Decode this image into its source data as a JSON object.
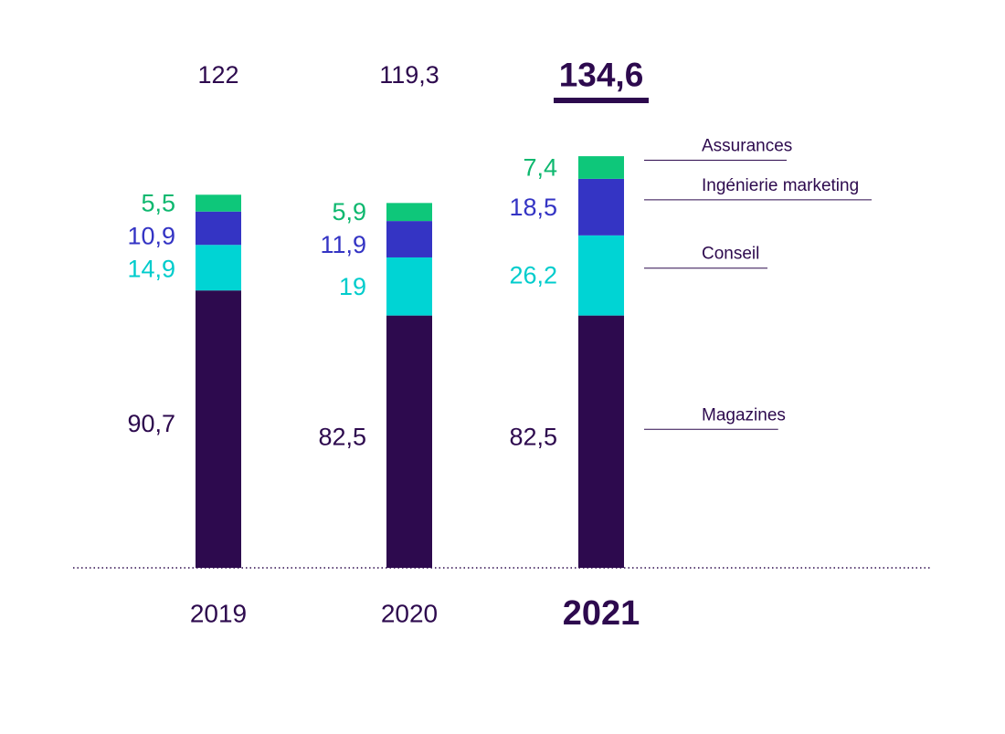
{
  "chart_data": {
    "type": "bar",
    "stacked": true,
    "categories": [
      "2019",
      "2020",
      "2021"
    ],
    "highlight_category": "2021",
    "totals": [
      "122",
      "119,3",
      "134,6"
    ],
    "series": [
      {
        "name": "Magazines",
        "values": [
          90.7,
          82.5,
          82.5
        ],
        "labels": [
          "90,7",
          "82,5",
          "82,5"
        ],
        "color": "#2d0a4e"
      },
      {
        "name": "Conseil",
        "values": [
          14.9,
          19,
          26.2
        ],
        "labels": [
          "14,9",
          "19",
          "26,2"
        ],
        "color": "#00d4d4"
      },
      {
        "name": "Ingénierie marketing",
        "values": [
          10.9,
          11.9,
          18.5
        ],
        "labels": [
          "10,9",
          "11,9",
          "18,5"
        ],
        "color": "#3434c4"
      },
      {
        "name": "Assurances",
        "values": [
          5.5,
          5.9,
          7.4
        ],
        "labels": [
          "5,5",
          "5,9",
          "7,4"
        ],
        "color": "#0ec77a"
      }
    ],
    "label_colors": {
      "Magazines": "#2d0a4e",
      "Conseil": "#00cccc",
      "Ingénierie marketing": "#3434c4",
      "Assurances": "#0eb86f"
    },
    "legend_position": "right",
    "baseline_style": "dotted",
    "grid": false,
    "ylim": [
      0,
      134.6
    ]
  }
}
